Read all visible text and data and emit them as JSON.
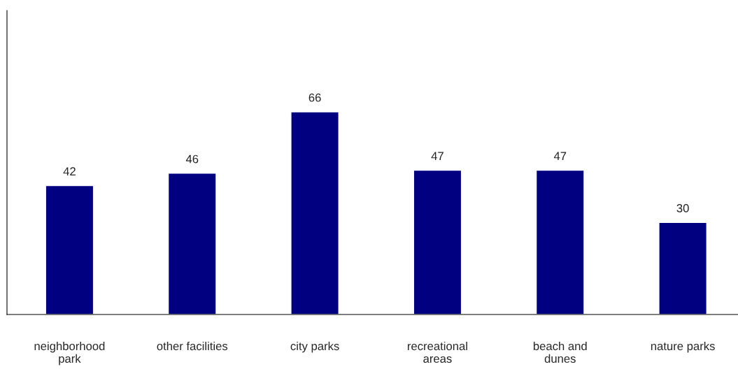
{
  "chart_data": {
    "type": "bar",
    "categories": [
      "neighborhood\npark",
      "other facilities",
      "city parks",
      "recreational\nareas",
      "beach and\ndunes",
      "nature parks"
    ],
    "values": [
      42,
      46,
      66,
      47,
      47,
      30
    ],
    "color": "#000080",
    "ylim": [
      0,
      99
    ],
    "data_labels": true,
    "grid": false,
    "legend": false
  }
}
